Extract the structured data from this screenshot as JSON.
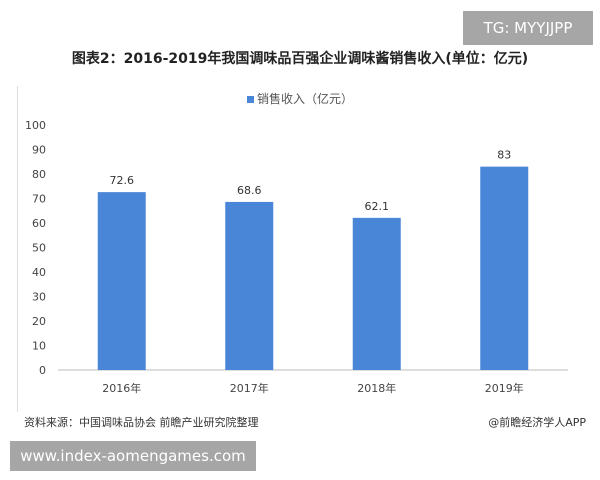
{
  "watermark_tag": "TG: MYYJJPP",
  "footer": {
    "source": "资料来源：中国调味品协会 前瞻产业研究院整理",
    "brand": "@前瞻经济学人APP",
    "url": "www.index-aomengames.com"
  },
  "chart_data": {
    "type": "bar",
    "title": "图表2：2016-2019年我国调味品百强企业调味酱销售收入(单位：亿元)",
    "categories": [
      "2016年",
      "2017年",
      "2018年",
      "2019年"
    ],
    "series": [
      {
        "name": "销售收入（亿元）",
        "values": [
          72.6,
          68.6,
          62.1,
          83
        ],
        "labels": [
          "72.6",
          "68.6",
          "62.1",
          "83"
        ],
        "color": "#4a86d8"
      }
    ],
    "ylim": [
      0,
      100
    ],
    "yticks": [
      "0",
      "10",
      "20",
      "30",
      "40",
      "50",
      "60",
      "70",
      "80",
      "90",
      "100"
    ],
    "legend": "top-center",
    "grid": false
  }
}
